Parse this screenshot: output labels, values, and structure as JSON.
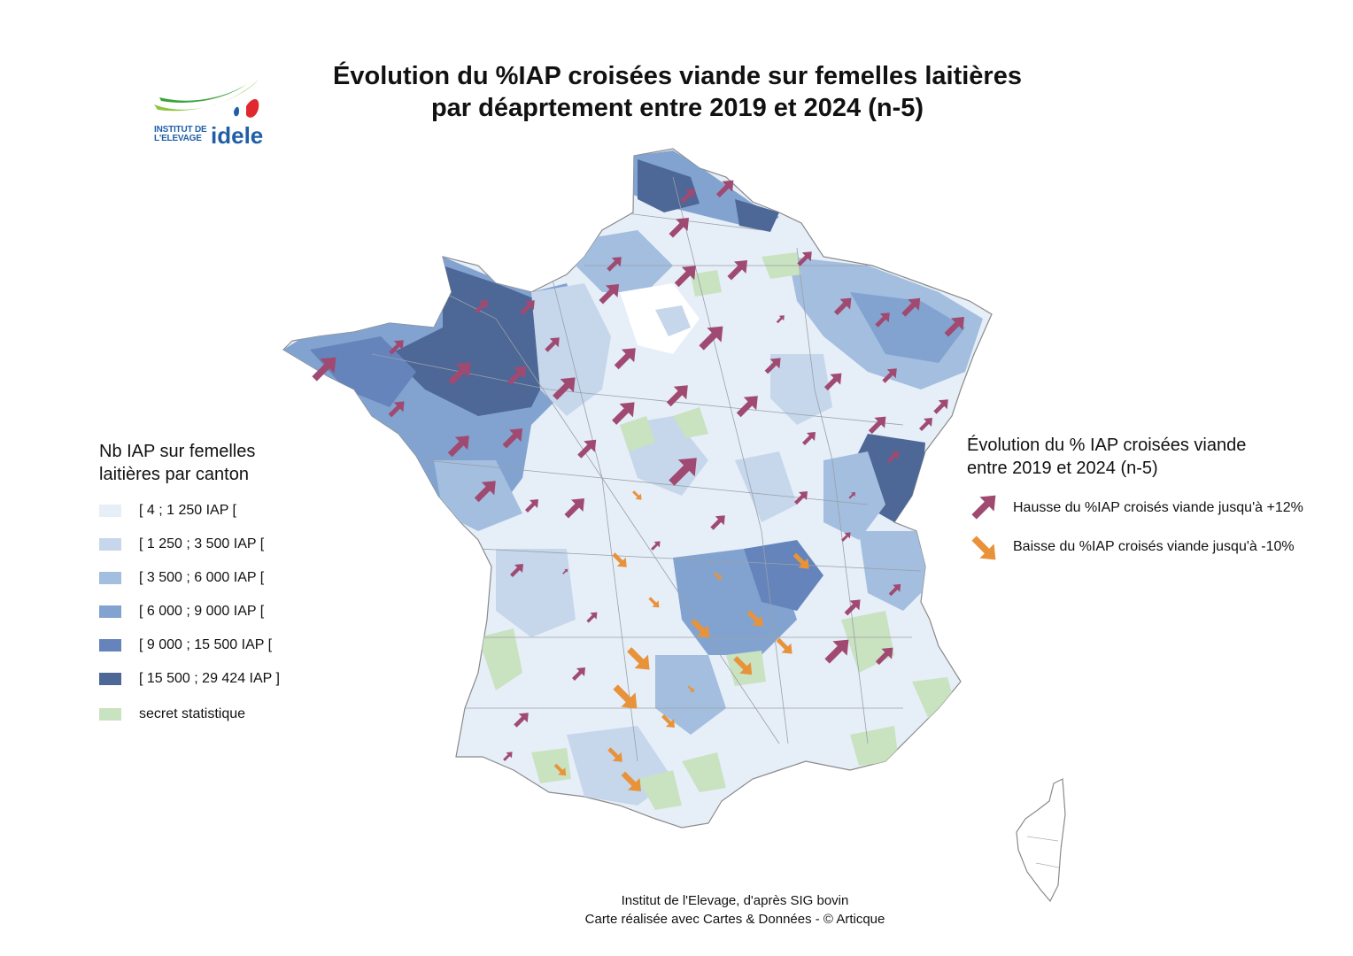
{
  "title": {
    "line1": "Évolution du %IAP croisées viande sur femelles laitières",
    "line2": "par déaprtement entre 2019 et 2024 (n-5)"
  },
  "logo": {
    "line1": "INSTITUT DE",
    "line2": "L'ELEVAGE",
    "brand": "idele"
  },
  "legend_left": {
    "title": "Nb IAP sur femelles laitières par canton",
    "items": [
      {
        "label": "[ 4 ; 1 250 IAP [",
        "color": "#e6eef8"
      },
      {
        "label": "[ 1 250 ; 3 500 IAP [",
        "color": "#c6d7ec"
      },
      {
        "label": "[ 3 500 ; 6 000 IAP [",
        "color": "#a3bede"
      },
      {
        "label": "[ 6 000 ; 9 000 IAP [",
        "color": "#82a3d0"
      },
      {
        "label": "[ 9 000 ; 15 500 IAP [",
        "color": "#6484bb"
      },
      {
        "label": "[ 15 500 ; 29 424 IAP ]",
        "color": "#4d6797"
      },
      {
        "label": "secret statistique",
        "color": "#c9e2c0"
      }
    ]
  },
  "legend_right": {
    "title_line1": "Évolution du % IAP croisées viande",
    "title_line2": "entre 2019 et 2024 (n-5)",
    "up_label": "Hausse du %IAP croisés viande jusqu'à +12%",
    "down_label": "Baisse du %IAP croisés viande jusqu'à -10%",
    "up_color": "#a04a72",
    "down_color": "#e8933a"
  },
  "source": {
    "line1": "Institut de l'Elevage, d'après SIG bovin",
    "line2": "Carte réalisée avec Cartes & Données - © Articque"
  }
}
